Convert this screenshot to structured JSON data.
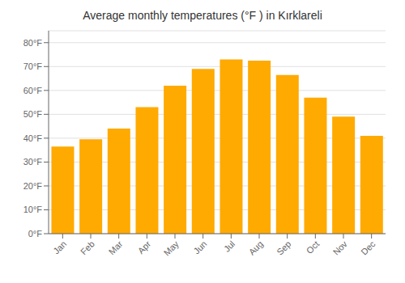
{
  "chart_data": {
    "type": "bar",
    "title": "Average monthly temperatures (°F ) in Kırklareli",
    "categories": [
      "Jan",
      "Feb",
      "Mar",
      "Apr",
      "May",
      "Jun",
      "Jul",
      "Aug",
      "Sep",
      "Oct",
      "Nov",
      "Dec"
    ],
    "values": [
      36.5,
      39.5,
      44.0,
      53.0,
      62.0,
      69.0,
      73.0,
      72.5,
      66.5,
      57.0,
      49.0,
      41.0
    ],
    "color": "#FFAA00",
    "ylim": [
      0,
      85
    ],
    "yticks": [
      {
        "value": 0,
        "label": "0°F"
      },
      {
        "value": 10,
        "label": "10°F"
      },
      {
        "value": 20,
        "label": "20°F"
      },
      {
        "value": 30,
        "label": "30°F"
      },
      {
        "value": 40,
        "label": "40°F"
      },
      {
        "value": 50,
        "label": "50°F"
      },
      {
        "value": 60,
        "label": "60°F"
      },
      {
        "value": 70,
        "label": "70°F"
      },
      {
        "value": 80,
        "label": "80°F"
      }
    ],
    "grid": true
  }
}
